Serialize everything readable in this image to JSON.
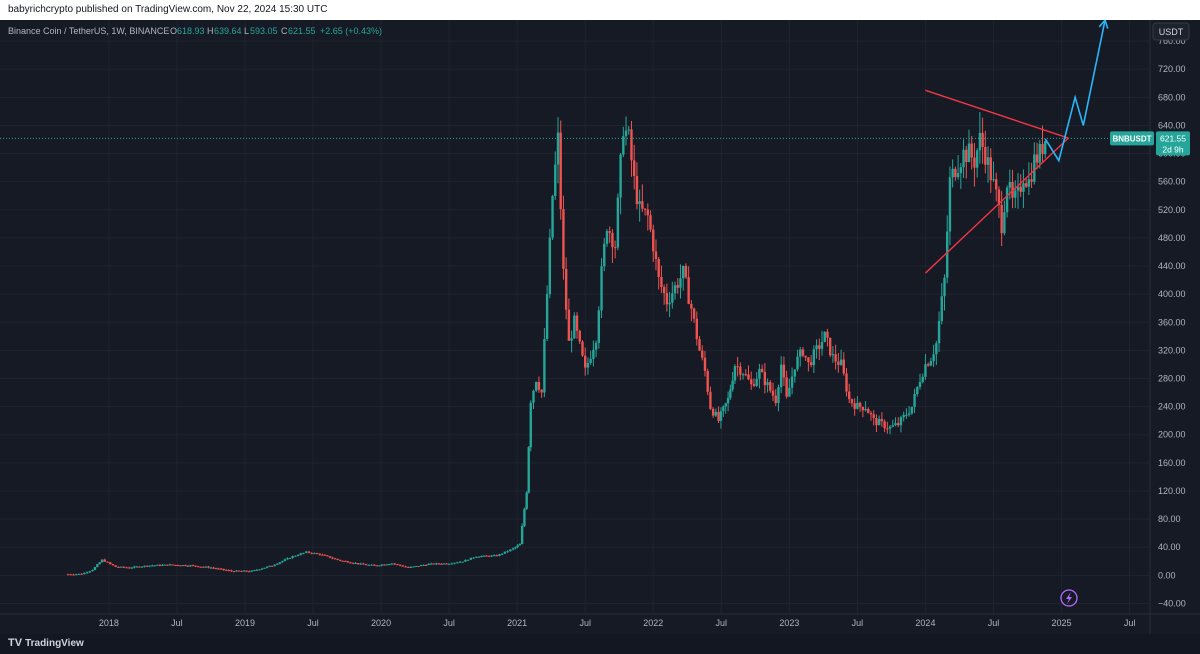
{
  "header": {
    "publisher_line": "babyrichcrypto published on TradingView.com, Nov 22, 2024 15:30 UTC"
  },
  "legend": {
    "symbol": "Binance Coin / TetherUS, 1W, BINANCE",
    "o_label": "O",
    "o": "618.93",
    "h_label": "H",
    "h": "639.64",
    "l_label": "L",
    "l": "593.05",
    "c_label": "C",
    "c": "621.55",
    "change": "+2.65 (+0.43%)"
  },
  "axis": {
    "currency": "USDT",
    "price_label": "BNBUSDT",
    "price_value": "621.55",
    "countdown": "2d 9h"
  },
  "footer": {
    "brand": "TradingView"
  },
  "colors": {
    "up": "#26a69a",
    "down": "#ef5350",
    "projection": "#29b6f6",
    "triangle": "#f23645",
    "background": "#161a25"
  },
  "chart_data": {
    "type": "candlestick",
    "timeframe": "1W",
    "y_ticks": [
      -40,
      0,
      40,
      80,
      120,
      160,
      200,
      240,
      280,
      320,
      360,
      400,
      440,
      480,
      520,
      560,
      600,
      640,
      680,
      720,
      760
    ],
    "y_tick_labels": [
      "−40.00",
      "0.00",
      "40.00",
      "80.00",
      "120.00",
      "160.00",
      "200.00",
      "240.00",
      "280.00",
      "320.00",
      "360.00",
      "400.00",
      "440.00",
      "480.00",
      "520.00",
      "560.00",
      "600.00",
      "640.00",
      "680.00",
      "720.00",
      "760.00"
    ],
    "x_ticks": [
      2018,
      2018.5,
      2019,
      2019.5,
      2020,
      2020.5,
      2021,
      2021.5,
      2022,
      2022.5,
      2023,
      2023.5,
      2024,
      2024.5,
      2025,
      2025.5
    ],
    "x_tick_labels": [
      "2018",
      "Jul",
      "2019",
      "Jul",
      "2020",
      "Jul",
      "2021",
      "Jul",
      "2022",
      "Jul",
      "2023",
      "Jul",
      "2024",
      "Jul",
      "2025",
      "Jul"
    ],
    "close_series": [
      [
        2017.7,
        1.5
      ],
      [
        2017.8,
        2
      ],
      [
        2017.88,
        8
      ],
      [
        2017.95,
        22
      ],
      [
        2018.05,
        12
      ],
      [
        2018.15,
        11
      ],
      [
        2018.3,
        14
      ],
      [
        2018.45,
        15
      ],
      [
        2018.6,
        14
      ],
      [
        2018.75,
        11
      ],
      [
        2018.9,
        6
      ],
      [
        2019.05,
        6
      ],
      [
        2019.2,
        14
      ],
      [
        2019.35,
        27
      ],
      [
        2019.45,
        33
      ],
      [
        2019.55,
        30
      ],
      [
        2019.7,
        21
      ],
      [
        2019.85,
        16
      ],
      [
        2019.95,
        14
      ],
      [
        2020.08,
        17
      ],
      [
        2020.2,
        11
      ],
      [
        2020.35,
        16
      ],
      [
        2020.5,
        17
      ],
      [
        2020.6,
        20
      ],
      [
        2020.7,
        27
      ],
      [
        2020.85,
        28
      ],
      [
        2020.97,
        38
      ],
      [
        2021.02,
        44
      ],
      [
        2021.07,
        120
      ],
      [
        2021.1,
        250
      ],
      [
        2021.14,
        280
      ],
      [
        2021.18,
        260
      ],
      [
        2021.22,
        400
      ],
      [
        2021.26,
        540
      ],
      [
        2021.3,
        620
      ],
      [
        2021.34,
        430
      ],
      [
        2021.38,
        330
      ],
      [
        2021.42,
        360
      ],
      [
        2021.5,
        290
      ],
      [
        2021.58,
        340
      ],
      [
        2021.62,
        430
      ],
      [
        2021.66,
        500
      ],
      [
        2021.72,
        470
      ],
      [
        2021.78,
        640
      ],
      [
        2021.82,
        620
      ],
      [
        2021.86,
        560
      ],
      [
        2021.9,
        520
      ],
      [
        2021.96,
        510
      ],
      [
        2022.0,
        470
      ],
      [
        2022.04,
        420
      ],
      [
        2022.1,
        390
      ],
      [
        2022.16,
        410
      ],
      [
        2022.22,
        430
      ],
      [
        2022.28,
        380
      ],
      [
        2022.34,
        320
      ],
      [
        2022.38,
        290
      ],
      [
        2022.42,
        240
      ],
      [
        2022.48,
        220
      ],
      [
        2022.55,
        250
      ],
      [
        2022.6,
        300
      ],
      [
        2022.66,
        290
      ],
      [
        2022.72,
        270
      ],
      [
        2022.78,
        290
      ],
      [
        2022.84,
        270
      ],
      [
        2022.9,
        250
      ],
      [
        2022.94,
        300
      ],
      [
        2022.98,
        250
      ],
      [
        2023.04,
        300
      ],
      [
        2023.1,
        320
      ],
      [
        2023.14,
        300
      ],
      [
        2023.2,
        320
      ],
      [
        2023.26,
        340
      ],
      [
        2023.32,
        310
      ],
      [
        2023.38,
        300
      ],
      [
        2023.44,
        250
      ],
      [
        2023.5,
        240
      ],
      [
        2023.56,
        240
      ],
      [
        2023.62,
        220
      ],
      [
        2023.68,
        215
      ],
      [
        2023.74,
        210
      ],
      [
        2023.8,
        215
      ],
      [
        2023.86,
        230
      ],
      [
        2023.9,
        240
      ],
      [
        2023.96,
        280
      ],
      [
        2024.0,
        300
      ],
      [
        2024.04,
        310
      ],
      [
        2024.08,
        330
      ],
      [
        2024.14,
        420
      ],
      [
        2024.18,
        560
      ],
      [
        2024.22,
        580
      ],
      [
        2024.28,
        600
      ],
      [
        2024.32,
        600
      ],
      [
        2024.36,
        590
      ],
      [
        2024.4,
        620
      ],
      [
        2024.44,
        600
      ],
      [
        2024.48,
        570
      ],
      [
        2024.52,
        540
      ],
      [
        2024.56,
        500
      ],
      [
        2024.6,
        560
      ],
      [
        2024.64,
        530
      ],
      [
        2024.68,
        540
      ],
      [
        2024.72,
        570
      ],
      [
        2024.76,
        560
      ],
      [
        2024.8,
        590
      ],
      [
        2024.84,
        600
      ],
      [
        2024.88,
        621.55
      ]
    ],
    "annotations": {
      "triangle": {
        "upper_line": [
          [
            2024.0,
            690
          ],
          [
            2025.05,
            622
          ]
        ],
        "lower_line": [
          [
            2024.0,
            430
          ],
          [
            2025.05,
            622
          ]
        ]
      },
      "projection": [
        [
          2024.88,
          621
        ],
        [
          2024.98,
          590
        ],
        [
          2025.1,
          680
        ],
        [
          2025.16,
          640
        ],
        [
          2025.32,
          790
        ]
      ],
      "last_price_line": 621.55
    },
    "ylim": [
      -55,
      790
    ],
    "xlim": [
      2017.2,
      2025.65
    ]
  }
}
